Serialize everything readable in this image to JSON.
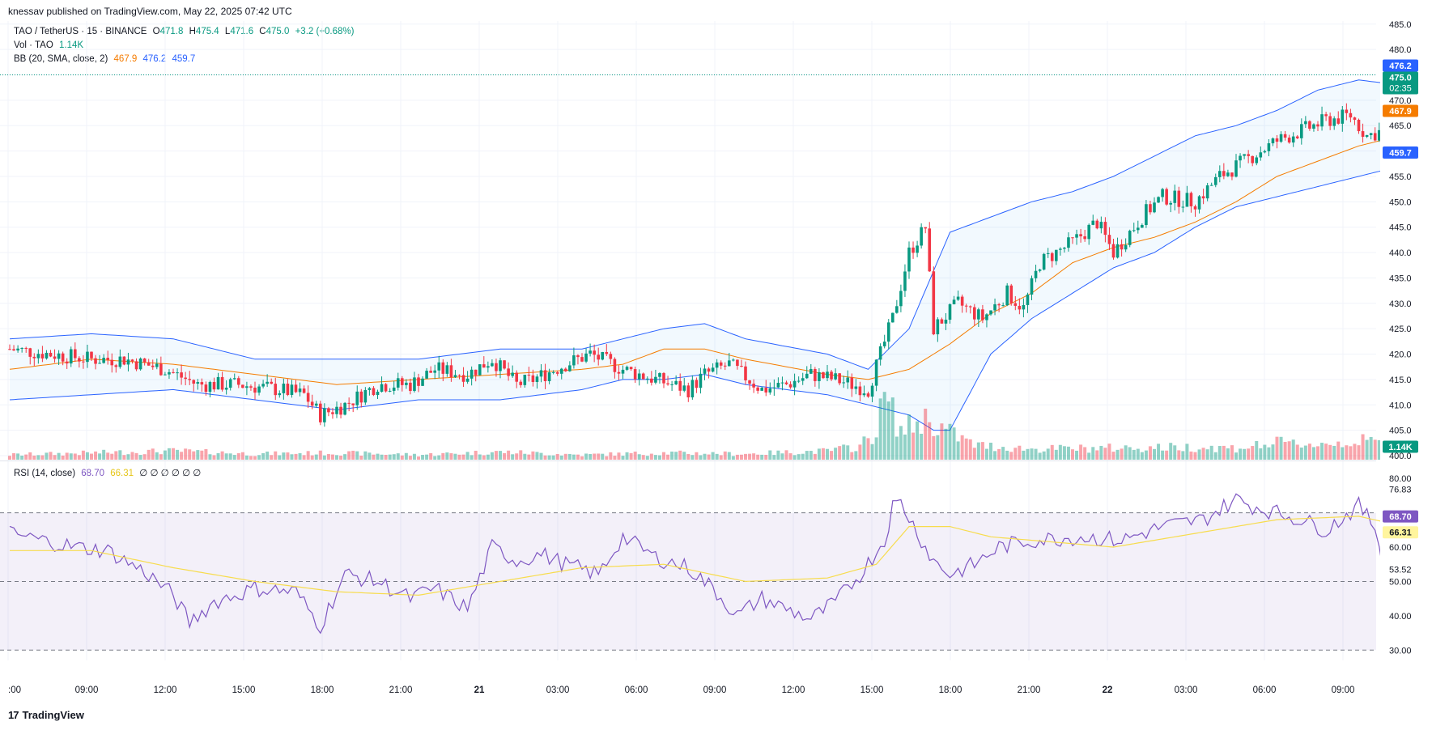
{
  "header": {
    "published": "knessav published on TradingView.com, May 22, 2025 07:42 UTC"
  },
  "legend": {
    "symbol": "TAO / TetherUS · 15 · BINANCE",
    "o_label": "O",
    "o_value": "471.8",
    "h_label": "H",
    "h_value": "475.4",
    "l_label": "L",
    "l_value": "471.6",
    "c_label": "C",
    "c_value": "475.0",
    "change": "+3.2 (+0.68%)",
    "vol_label": "Vol · TAO",
    "vol_value": "1.14K",
    "bb_label": "BB (20, SMA, close, 2)",
    "bb_basis": "467.9",
    "bb_upper": "476.2",
    "bb_lower": "459.7",
    "rsi_label": "RSI (14, close)",
    "rsi_value": "68.70",
    "rsi_ma": "66.31",
    "rsi_empty": "∅ ∅ ∅ ∅ ∅ ∅"
  },
  "badges": {
    "bb_upper": "476.2",
    "price": "475.0",
    "countdown": "02:35",
    "bb_basis": "467.9",
    "bb_lower": "459.7",
    "volume": "1.14K",
    "rsi": "68.70",
    "rsi_ma": "66.31"
  },
  "colors": {
    "up": "#089981",
    "down": "#f23645",
    "bb_basis": "#f57c00",
    "bb_band": "#2962ff",
    "rsi_line": "#7e57c2",
    "rsi_ma": "#f7dc4d",
    "rsi_zone": "#7e57c2"
  },
  "brand": {
    "name": "TradingView"
  },
  "chart_data": {
    "type": "candlestick",
    "symbol": "TAO / TetherUS",
    "interval": "15",
    "price_axis_ticks": [
      "485.0",
      "480.0",
      "475.0",
      "470.0",
      "465.0",
      "460.0",
      "455.0",
      "450.0",
      "445.0",
      "440.0",
      "435.0",
      "430.0",
      "425.0",
      "420.0",
      "415.0",
      "410.0",
      "405.0",
      "400.0"
    ],
    "price_range": [
      399.2,
      485.6
    ],
    "rsi_axis_ticks": [
      "80.00",
      "76.83",
      "60.00",
      "53.52",
      "50.00",
      "40.00",
      "30.00"
    ],
    "rsi_range": [
      27,
      85
    ],
    "rsi_levels": [
      70,
      50,
      30
    ],
    "time_axis_ticks": [
      ":00",
      "09:00",
      "12:00",
      "15:00",
      "18:00",
      "21:00",
      "21",
      "03:00",
      "06:00",
      "09:00",
      "12:00",
      "15:00",
      "18:00",
      "21:00",
      "22",
      "03:00",
      "06:00",
      "09:00"
    ],
    "time_axis_bold": [
      "21",
      "22"
    ],
    "price_key": [
      [
        0,
        421
      ],
      [
        10,
        420
      ],
      [
        20,
        419
      ],
      [
        28,
        419
      ],
      [
        38,
        417
      ],
      [
        46,
        414
      ],
      [
        56,
        414
      ],
      [
        66,
        413
      ],
      [
        72,
        412
      ],
      [
        76,
        408
      ],
      [
        82,
        410
      ],
      [
        90,
        414
      ],
      [
        98,
        414
      ],
      [
        104,
        417
      ],
      [
        112,
        416
      ],
      [
        118,
        419
      ],
      [
        124,
        414
      ],
      [
        128,
        415
      ],
      [
        136,
        418
      ],
      [
        142,
        420
      ],
      [
        150,
        417
      ],
      [
        158,
        415
      ],
      [
        166,
        413
      ],
      [
        170,
        416
      ],
      [
        176,
        418
      ],
      [
        184,
        413
      ],
      [
        190,
        414
      ],
      [
        196,
        416
      ],
      [
        202,
        415
      ],
      [
        210,
        413
      ],
      [
        216,
        427
      ],
      [
        220,
        440
      ],
      [
        224,
        445
      ],
      [
        226,
        425
      ],
      [
        232,
        430
      ],
      [
        238,
        427
      ],
      [
        244,
        432
      ],
      [
        248,
        429
      ],
      [
        252,
        438
      ],
      [
        260,
        442
      ],
      [
        266,
        446
      ],
      [
        270,
        440
      ],
      [
        278,
        448
      ],
      [
        282,
        451
      ],
      [
        290,
        450
      ],
      [
        296,
        455
      ],
      [
        302,
        458
      ],
      [
        306,
        460
      ],
      [
        310,
        462
      ],
      [
        316,
        464
      ],
      [
        322,
        466
      ],
      [
        328,
        467
      ],
      [
        332,
        463
      ],
      [
        336,
        464
      ],
      [
        342,
        469
      ],
      [
        348,
        471
      ],
      [
        352,
        475
      ]
    ],
    "volume_key": [
      [
        0,
        0.05
      ],
      [
        40,
        0.09
      ],
      [
        60,
        0.06
      ],
      [
        80,
        0.07
      ],
      [
        100,
        0.05
      ],
      [
        120,
        0.08
      ],
      [
        140,
        0.05
      ],
      [
        160,
        0.07
      ],
      [
        180,
        0.06
      ],
      [
        200,
        0.09
      ],
      [
        208,
        0.14
      ],
      [
        212,
        0.3
      ],
      [
        214,
        0.65
      ],
      [
        218,
        0.3
      ],
      [
        224,
        0.42
      ],
      [
        230,
        0.28
      ],
      [
        236,
        0.15
      ],
      [
        250,
        0.11
      ],
      [
        270,
        0.12
      ],
      [
        290,
        0.13
      ],
      [
        300,
        0.12
      ],
      [
        310,
        0.17
      ],
      [
        320,
        0.16
      ],
      [
        330,
        0.19
      ],
      [
        340,
        0.18
      ],
      [
        352,
        0.22
      ]
    ],
    "rsi_key": [
      [
        0,
        64
      ],
      [
        8,
        62
      ],
      [
        16,
        60
      ],
      [
        24,
        59
      ],
      [
        34,
        52
      ],
      [
        40,
        46
      ],
      [
        44,
        38
      ],
      [
        50,
        44
      ],
      [
        60,
        48
      ],
      [
        70,
        47
      ],
      [
        76,
        37
      ],
      [
        82,
        52
      ],
      [
        90,
        50
      ],
      [
        98,
        45
      ],
      [
        104,
        48
      ],
      [
        112,
        42
      ],
      [
        118,
        60
      ],
      [
        124,
        56
      ],
      [
        130,
        58
      ],
      [
        136,
        55
      ],
      [
        144,
        52
      ],
      [
        150,
        63
      ],
      [
        158,
        57
      ],
      [
        166,
        54
      ],
      [
        172,
        48
      ],
      [
        178,
        40
      ],
      [
        184,
        45
      ],
      [
        190,
        42
      ],
      [
        196,
        39
      ],
      [
        202,
        44
      ],
      [
        208,
        52
      ],
      [
        214,
        62
      ],
      [
        216,
        72
      ],
      [
        218,
        73
      ],
      [
        224,
        60
      ],
      [
        226,
        56
      ],
      [
        230,
        52
      ],
      [
        236,
        55
      ],
      [
        242,
        60
      ],
      [
        250,
        62
      ],
      [
        262,
        63
      ],
      [
        272,
        62
      ],
      [
        282,
        66
      ],
      [
        292,
        68
      ],
      [
        300,
        74
      ],
      [
        304,
        72
      ],
      [
        316,
        68
      ],
      [
        322,
        65
      ],
      [
        330,
        72
      ],
      [
        334,
        66
      ],
      [
        336,
        55
      ],
      [
        340,
        62
      ],
      [
        348,
        65
      ],
      [
        352,
        68.7
      ]
    ],
    "rsi_ma_key": [
      [
        0,
        59
      ],
      [
        20,
        59
      ],
      [
        40,
        54
      ],
      [
        60,
        50
      ],
      [
        80,
        47
      ],
      [
        100,
        46
      ],
      [
        120,
        50
      ],
      [
        140,
        54
      ],
      [
        160,
        55
      ],
      [
        180,
        50
      ],
      [
        200,
        51
      ],
      [
        212,
        55
      ],
      [
        220,
        66
      ],
      [
        230,
        66
      ],
      [
        240,
        63
      ],
      [
        250,
        62
      ],
      [
        270,
        60
      ],
      [
        290,
        64
      ],
      [
        310,
        68
      ],
      [
        330,
        69
      ],
      [
        340,
        66.3
      ],
      [
        352,
        66.3
      ]
    ],
    "bb_basis_key": [
      [
        0,
        417
      ],
      [
        20,
        419
      ],
      [
        40,
        418
      ],
      [
        60,
        416
      ],
      [
        80,
        414
      ],
      [
        100,
        415
      ],
      [
        120,
        416
      ],
      [
        140,
        417
      ],
      [
        150,
        418
      ],
      [
        160,
        421
      ],
      [
        170,
        421
      ],
      [
        180,
        419
      ],
      [
        200,
        416
      ],
      [
        210,
        415
      ],
      [
        220,
        417
      ],
      [
        230,
        422
      ],
      [
        240,
        428
      ],
      [
        250,
        432
      ],
      [
        260,
        438
      ],
      [
        270,
        441
      ],
      [
        280,
        443
      ],
      [
        290,
        446
      ],
      [
        300,
        450
      ],
      [
        310,
        455
      ],
      [
        320,
        458
      ],
      [
        330,
        461
      ],
      [
        340,
        463
      ],
      [
        352,
        467.9
      ]
    ],
    "bb_upper_key": [
      [
        0,
        423
      ],
      [
        20,
        424
      ],
      [
        40,
        423
      ],
      [
        60,
        419
      ],
      [
        80,
        419
      ],
      [
        100,
        419
      ],
      [
        120,
        421
      ],
      [
        140,
        421
      ],
      [
        160,
        425
      ],
      [
        170,
        426
      ],
      [
        180,
        423
      ],
      [
        200,
        420
      ],
      [
        210,
        417
      ],
      [
        220,
        425
      ],
      [
        230,
        444
      ],
      [
        240,
        447
      ],
      [
        250,
        450
      ],
      [
        260,
        452
      ],
      [
        270,
        455
      ],
      [
        280,
        459
      ],
      [
        290,
        463
      ],
      [
        300,
        465
      ],
      [
        310,
        468
      ],
      [
        320,
        472
      ],
      [
        330,
        474
      ],
      [
        340,
        473
      ],
      [
        352,
        476.2
      ]
    ],
    "bb_lower_key": [
      [
        0,
        411
      ],
      [
        20,
        412
      ],
      [
        40,
        413
      ],
      [
        60,
        411
      ],
      [
        80,
        409
      ],
      [
        100,
        411
      ],
      [
        120,
        411
      ],
      [
        140,
        413
      ],
      [
        150,
        415
      ],
      [
        160,
        415
      ],
      [
        170,
        416
      ],
      [
        180,
        414
      ],
      [
        200,
        412
      ],
      [
        210,
        410
      ],
      [
        220,
        408
      ],
      [
        226,
        405
      ],
      [
        230,
        405
      ],
      [
        240,
        420
      ],
      [
        250,
        427
      ],
      [
        260,
        432
      ],
      [
        270,
        437
      ],
      [
        280,
        440
      ],
      [
        290,
        445
      ],
      [
        300,
        449
      ],
      [
        310,
        451
      ],
      [
        320,
        453
      ],
      [
        330,
        455
      ],
      [
        340,
        457
      ],
      [
        352,
        459.7
      ]
    ]
  }
}
